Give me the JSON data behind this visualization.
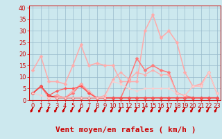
{
  "bg_color": "#cce8ee",
  "grid_color": "#99bbcc",
  "xlabel": "Vent moyen/en rafales ( km/h )",
  "x_ticks": [
    0,
    1,
    2,
    3,
    4,
    5,
    6,
    7,
    8,
    9,
    10,
    11,
    12,
    13,
    14,
    15,
    16,
    17,
    18,
    19,
    20,
    21,
    22,
    23
  ],
  "y_ticks": [
    0,
    5,
    10,
    15,
    20,
    25,
    30,
    35,
    40
  ],
  "xlim": [
    -0.5,
    23.5
  ],
  "ylim": [
    0,
    41
  ],
  "series": [
    {
      "color": "#ffaaaa",
      "values": [
        13,
        19,
        8,
        8,
        7,
        15,
        24,
        15,
        16,
        15,
        15,
        8,
        8,
        8,
        30,
        37,
        27,
        30,
        25,
        12,
        6,
        7,
        12,
        3
      ],
      "lw": 1.1,
      "ms": 2.5
    },
    {
      "color": "#ff7777",
      "values": [
        3,
        6,
        1,
        2,
        1,
        3,
        7,
        3,
        1,
        1,
        1,
        1,
        9,
        18,
        13,
        15,
        13,
        12,
        3,
        2,
        1,
        1,
        1,
        1
      ],
      "lw": 1.1,
      "ms": 2.5
    },
    {
      "color": "#ffaaaa",
      "values": [
        3,
        6,
        1,
        2,
        1,
        4,
        7,
        4,
        1,
        2,
        9,
        12,
        9,
        12,
        11,
        13,
        11,
        11,
        3,
        2,
        6,
        6,
        12,
        3
      ],
      "lw": 0.9,
      "ms": 2.0
    },
    {
      "color": "#cc2222",
      "values": [
        3,
        6,
        2,
        1,
        1,
        1,
        1,
        1,
        1,
        1,
        1,
        1,
        1,
        1,
        1,
        1,
        1,
        1,
        1,
        1,
        1,
        1,
        1,
        1
      ],
      "lw": 1.1,
      "ms": 2.5
    },
    {
      "color": "#ff5555",
      "values": [
        3,
        6,
        2,
        4,
        5,
        5,
        6,
        3,
        1,
        1,
        1,
        1,
        1,
        1,
        1,
        1,
        1,
        1,
        1,
        1,
        1,
        1,
        1,
        1
      ],
      "lw": 0.9,
      "ms": 2.0
    },
    {
      "color": "#ffcccc",
      "values": [
        3,
        2,
        1,
        1,
        1,
        1,
        1,
        1,
        1,
        1,
        8,
        7,
        5,
        4,
        5,
        5,
        5,
        5,
        3,
        2,
        6,
        6,
        12,
        3
      ],
      "lw": 0.7,
      "ms": 1.8
    }
  ],
  "red": "#cc0000",
  "xlabel_fontsize": 8,
  "tick_fontsize": 6
}
